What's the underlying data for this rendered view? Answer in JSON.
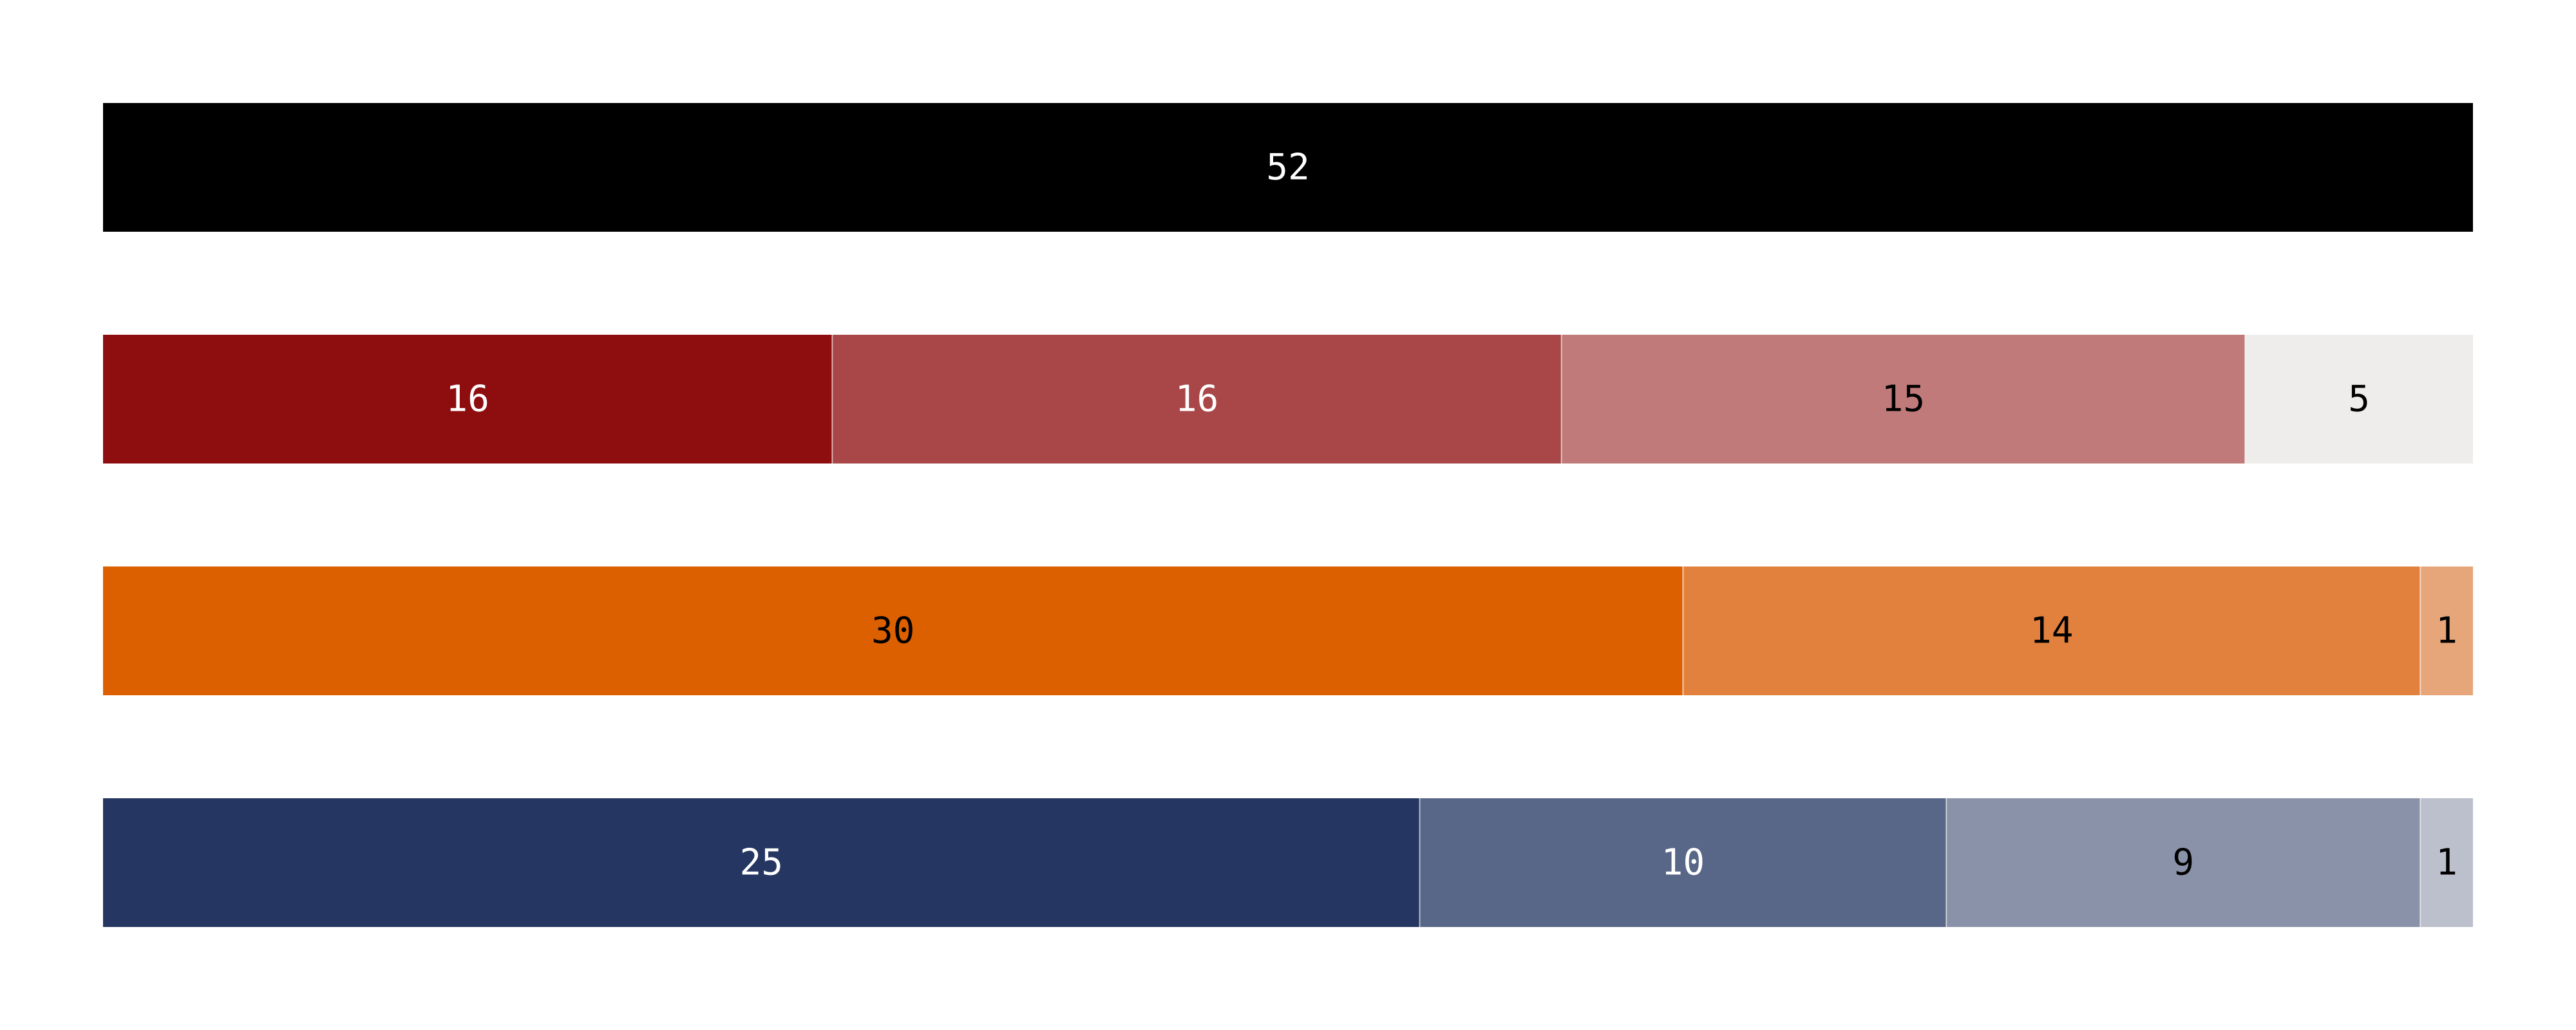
{
  "chart_data": {
    "type": "bar",
    "orientation": "horizontal",
    "stacked": true,
    "normalized": true,
    "grid": false,
    "legend": "none",
    "title": "",
    "xlabel": "",
    "ylabel": "",
    "rows": [
      {
        "segments": [
          {
            "value": 52,
            "color": "#000000",
            "label_color": "#ffffff"
          }
        ]
      },
      {
        "segments": [
          {
            "value": 16,
            "color": "#8e0e10",
            "label_color": "#ffffff"
          },
          {
            "value": 16,
            "color": "#a84648",
            "label_color": "#ffffff"
          },
          {
            "value": 15,
            "color": "#c07a7a",
            "label_color": "#000000"
          },
          {
            "value": 5,
            "color": "#eeedeb",
            "label_color": "#000000"
          }
        ]
      },
      {
        "segments": [
          {
            "value": 30,
            "color": "#dc5f00",
            "label_color": "#000000"
          },
          {
            "value": 14,
            "color": "#e2813d",
            "label_color": "#000000"
          },
          {
            "value": 1,
            "color": "#e6a679",
            "label_color": "#000000"
          }
        ]
      },
      {
        "segments": [
          {
            "value": 25,
            "color": "#253662",
            "label_color": "#ffffff"
          },
          {
            "value": 10,
            "color": "#586687",
            "label_color": "#ffffff"
          },
          {
            "value": 9,
            "color": "#8a92a9",
            "label_color": "#000000"
          },
          {
            "value": 1,
            "color": "#bcc0cc",
            "label_color": "#000000"
          }
        ]
      }
    ]
  }
}
